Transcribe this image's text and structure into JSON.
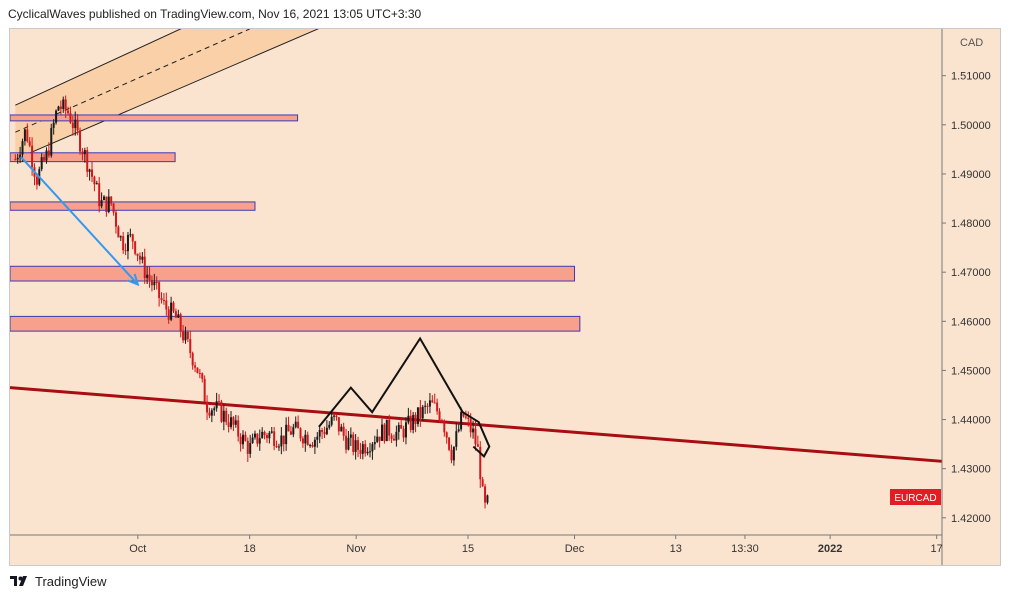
{
  "header": {
    "published_line": "CyclicalWaves published on TradingView.com, Nov 16, 2021 13:05 UTC+3:30"
  },
  "footer": {
    "brand": "TradingView",
    "logo_icon": "tradingview-logo-icon"
  },
  "colors": {
    "background": "#fbe4cf",
    "candle_up": "#1a1a1a",
    "candle_down": "#d0171b",
    "zone_fill": "#f7a08c",
    "zone_border": "#3a3ab8",
    "trendline": "#a80d12",
    "channel_fill": "#f8c99a",
    "arrow": "#3399ee",
    "symbol_badge": "#e31b23"
  },
  "chart_data": {
    "type": "candlestick",
    "symbol": "EURCAD",
    "currency": "CAD",
    "y_axis": {
      "ticks": [
        "1.42000",
        "1.43000",
        "1.44000",
        "1.45000",
        "1.46000",
        "1.47000",
        "1.48000",
        "1.49000",
        "1.50000",
        "1.51000"
      ],
      "tick_values": [
        1.42,
        1.43,
        1.44,
        1.45,
        1.46,
        1.47,
        1.48,
        1.49,
        1.5,
        1.51
      ],
      "range": [
        1.4165,
        1.5195
      ]
    },
    "x_axis": {
      "ticks": [
        "Oct",
        "18",
        "Nov",
        "15",
        "Dec",
        "13",
        "13:30",
        "2022",
        "17"
      ],
      "tick_slots": [
        23,
        44,
        64,
        85,
        105,
        124,
        137,
        153,
        173
      ],
      "range": [
        -1,
        174
      ]
    },
    "price_path": [
      [
        0,
        1.493
      ],
      [
        2,
        1.499
      ],
      [
        4,
        1.489
      ],
      [
        6,
        1.494
      ],
      [
        8,
        1.504
      ],
      [
        10,
        1.5025
      ],
      [
        12,
        1.497
      ],
      [
        14,
        1.491
      ],
      [
        16,
        1.484
      ],
      [
        18,
        1.484
      ],
      [
        20,
        1.476
      ],
      [
        22,
        1.477
      ],
      [
        24,
        1.471
      ],
      [
        26,
        1.467
      ],
      [
        28,
        1.463
      ],
      [
        30,
        1.461
      ],
      [
        32,
        1.456
      ],
      [
        34,
        1.451
      ],
      [
        36,
        1.443
      ],
      [
        38,
        1.442
      ],
      [
        40,
        1.44
      ],
      [
        42,
        1.437
      ],
      [
        44,
        1.434
      ],
      [
        46,
        1.437
      ],
      [
        48,
        1.437
      ],
      [
        50,
        1.436
      ],
      [
        52,
        1.438
      ],
      [
        54,
        1.437
      ],
      [
        56,
        1.436
      ],
      [
        58,
        1.438
      ],
      [
        60,
        1.44
      ],
      [
        62,
        1.436
      ],
      [
        64,
        1.434
      ],
      [
        66,
        1.435
      ],
      [
        68,
        1.437
      ],
      [
        70,
        1.438
      ],
      [
        72,
        1.437
      ],
      [
        74,
        1.439
      ],
      [
        76,
        1.441
      ],
      [
        78,
        1.443
      ],
      [
        80,
        1.441
      ],
      [
        82,
        1.433
      ],
      [
        84,
        1.441
      ],
      [
        86,
        1.437
      ],
      [
        87,
        1.433
      ],
      [
        88,
        1.4215
      ],
      [
        89,
        1.4235
      ]
    ],
    "horizontal_zones": [
      {
        "low": 1.5008,
        "high": 1.502,
        "x_end": 53
      },
      {
        "low": 1.4925,
        "high": 1.4943,
        "x_end": 30
      },
      {
        "low": 1.4826,
        "high": 1.4843,
        "x_end": 45
      },
      {
        "low": 1.4682,
        "high": 1.4712,
        "x_end": 105
      },
      {
        "low": 1.458,
        "high": 1.461,
        "x_end": 106
      }
    ],
    "trendline": {
      "start": [
        -1,
        1.4465
      ],
      "end": [
        174,
        1.4315
      ]
    },
    "channel": {
      "upper": {
        "start": [
          0,
          1.504
        ],
        "end": [
          60,
          1.534
        ]
      },
      "lower": {
        "start": [
          0,
          1.493
        ],
        "end": [
          60,
          1.521
        ]
      },
      "mid_dashed": {
        "start": [
          0,
          1.4985
        ],
        "end": [
          44,
          1.5195
        ]
      }
    },
    "arrow": {
      "start": [
        1,
        1.4935
      ],
      "end": [
        23,
        1.4675
      ]
    },
    "pattern_lines": [
      [
        [
          57,
          1.4385
        ],
        [
          63,
          1.4465
        ],
        [
          67,
          1.4415
        ],
        [
          76,
          1.4565
        ],
        [
          84,
          1.4415
        ],
        [
          87,
          1.4395
        ],
        [
          89,
          1.4345
        ],
        [
          88,
          1.4325
        ],
        [
          86,
          1.4345
        ]
      ]
    ],
    "last_price_label": "EURCAD",
    "grid": false
  }
}
